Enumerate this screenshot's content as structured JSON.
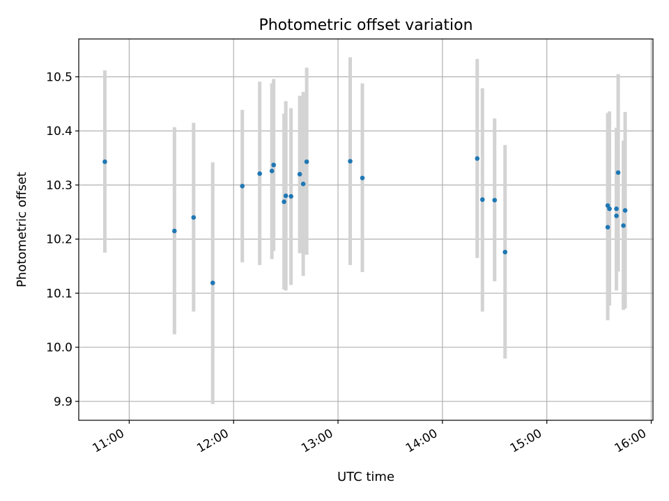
{
  "chart_data": {
    "type": "scatter",
    "title": "Photometric offset variation",
    "xlabel": "UTC time",
    "ylabel": "Photometric offset",
    "x_unit": "UTC time (HH:MM)",
    "xlim": [
      "10:31",
      "16:01"
    ],
    "ylim": [
      9.865,
      10.57
    ],
    "grid": true,
    "x_ticks": [
      "11:00",
      "12:00",
      "13:00",
      "14:00",
      "15:00",
      "16:00"
    ],
    "y_ticks": [
      9.9,
      10.0,
      10.1,
      10.2,
      10.3,
      10.4,
      10.5
    ],
    "y_tick_labels": [
      "9.9",
      "10.0",
      "10.1",
      "10.2",
      "10.3",
      "10.4",
      "10.5"
    ],
    "marker_color": "#1f77b4",
    "errorbar_color": "#d3d3d3",
    "series": [
      {
        "points": [
          {
            "t": "10:46",
            "y": 10.343,
            "lo": 10.175,
            "hi": 10.512
          },
          {
            "t": "11:26",
            "y": 10.215,
            "lo": 10.024,
            "hi": 10.407
          },
          {
            "t": "11:37",
            "y": 10.24,
            "lo": 10.066,
            "hi": 10.415
          },
          {
            "t": "11:48",
            "y": 10.119,
            "lo": 9.895,
            "hi": 10.342
          },
          {
            "t": "12:05",
            "y": 10.298,
            "lo": 10.157,
            "hi": 10.439
          },
          {
            "t": "12:15",
            "y": 10.321,
            "lo": 10.152,
            "hi": 10.491
          },
          {
            "t": "12:22",
            "y": 10.326,
            "lo": 10.163,
            "hi": 10.488
          },
          {
            "t": "12:23",
            "y": 10.337,
            "lo": 10.178,
            "hi": 10.496
          },
          {
            "t": "12:29",
            "y": 10.269,
            "lo": 10.107,
            "hi": 10.432
          },
          {
            "t": "12:30",
            "y": 10.28,
            "lo": 10.105,
            "hi": 10.455
          },
          {
            "t": "12:33",
            "y": 10.279,
            "lo": 10.115,
            "hi": 10.442
          },
          {
            "t": "12:38",
            "y": 10.32,
            "lo": 10.174,
            "hi": 10.465
          },
          {
            "t": "12:40",
            "y": 10.302,
            "lo": 10.132,
            "hi": 10.472
          },
          {
            "t": "12:42",
            "y": 10.343,
            "lo": 10.171,
            "hi": 10.517
          },
          {
            "t": "13:07",
            "y": 10.344,
            "lo": 10.152,
            "hi": 10.536
          },
          {
            "t": "13:14",
            "y": 10.313,
            "lo": 10.139,
            "hi": 10.488
          },
          {
            "t": "14:20",
            "y": 10.349,
            "lo": 10.165,
            "hi": 10.533
          },
          {
            "t": "14:23",
            "y": 10.273,
            "lo": 10.066,
            "hi": 10.479
          },
          {
            "t": "14:30",
            "y": 10.272,
            "lo": 10.122,
            "hi": 10.423
          },
          {
            "t": "14:36",
            "y": 10.176,
            "lo": 9.979,
            "hi": 10.374
          },
          {
            "t": "15:35",
            "y": 10.222,
            "lo": 10.05,
            "hi": 10.395
          },
          {
            "t": "15:35",
            "y": 10.262,
            "lo": 10.088,
            "hi": 10.433
          },
          {
            "t": "15:36",
            "y": 10.256,
            "lo": 10.077,
            "hi": 10.436
          },
          {
            "t": "15:40",
            "y": 10.243,
            "lo": 10.139,
            "hi": 10.348
          },
          {
            "t": "15:40",
            "y": 10.256,
            "lo": 10.105,
            "hi": 10.406
          },
          {
            "t": "15:41",
            "y": 10.323,
            "lo": 10.14,
            "hi": 10.505
          },
          {
            "t": "15:44",
            "y": 10.225,
            "lo": 10.069,
            "hi": 10.382
          },
          {
            "t": "15:45",
            "y": 10.253,
            "lo": 10.072,
            "hi": 10.435
          }
        ]
      }
    ]
  }
}
